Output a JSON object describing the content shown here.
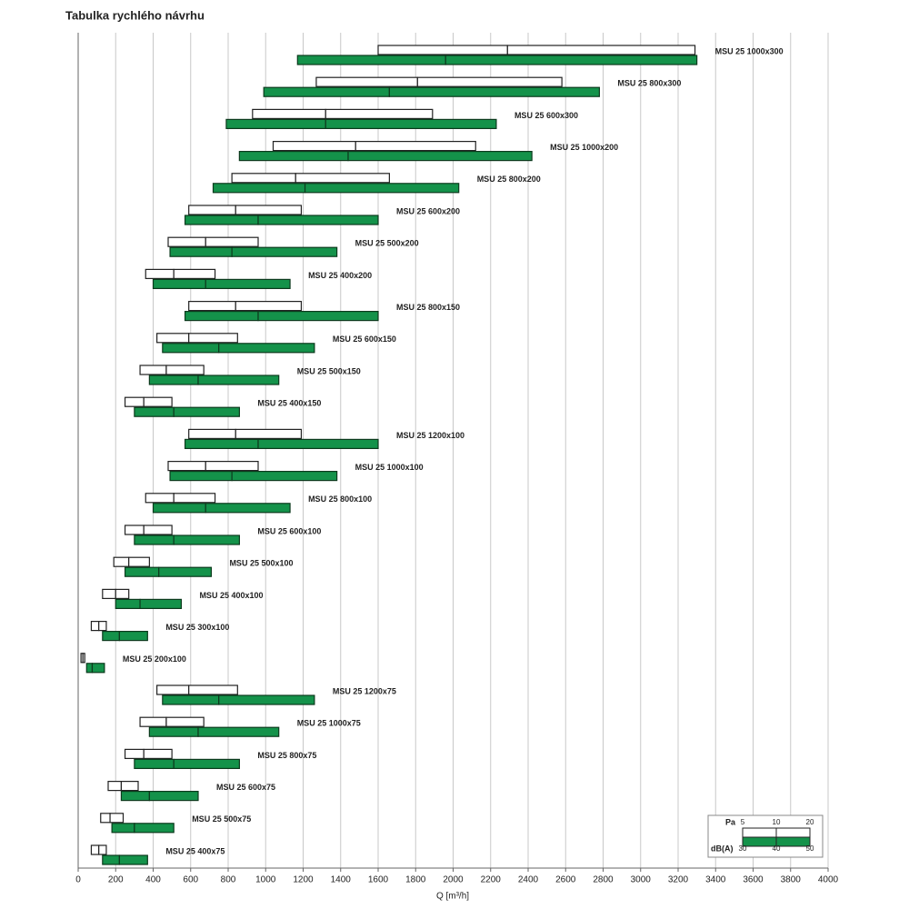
{
  "chart_data": {
    "type": "range",
    "title": "Tabulka rychlého návrhu",
    "x_label": "Q [m³/h]",
    "xlim": [
      0,
      4000
    ],
    "xticks": [
      0,
      200,
      400,
      600,
      800,
      1000,
      1200,
      1400,
      1600,
      1800,
      2000,
      2200,
      2400,
      2600,
      2800,
      3000,
      3200,
      3400,
      3600,
      3800,
      4000
    ],
    "grid": true,
    "legend": "bottom-right",
    "categories": [
      "MSU 25 1000x300",
      "MSU 25 800x300",
      "MSU 25 600x300",
      "MSU 25 1000x200",
      "MSU 25 800x200",
      "MSU 25 600x200",
      "MSU 25 500x200",
      "MSU 25 400x200",
      "MSU 25 800x150",
      "MSU 25 600x150",
      "MSU 25 500x150",
      "MSU 25 400x150",
      "MSU 25 1200x100",
      "MSU 25 1000x100",
      "MSU 25 800x100",
      "MSU 25 600x100",
      "MSU 25 500x100",
      "MSU 25 400x100",
      "MSU 25 300x100",
      "MSU 25 200x100",
      "MSU 25 1200x75",
      "MSU 25 1000x75",
      "MSU 25 800x75",
      "MSU 25 600x75",
      "MSU 25 500x75",
      "MSU 25 400x75"
    ],
    "series": [
      {
        "name": "Pa",
        "color": "#ffffff",
        "ticks": [
          5,
          10,
          20
        ],
        "values": [
          [
            1600,
            2290,
            3290
          ],
          [
            1270,
            1810,
            2580
          ],
          [
            930,
            1320,
            1890
          ],
          [
            1040,
            1480,
            2120
          ],
          [
            820,
            1160,
            1660
          ],
          [
            590,
            840,
            1190
          ],
          [
            480,
            680,
            960
          ],
          [
            360,
            510,
            730
          ],
          [
            590,
            840,
            1190
          ],
          [
            420,
            590,
            850
          ],
          [
            330,
            470,
            670
          ],
          [
            250,
            350,
            500
          ],
          [
            590,
            840,
            1190
          ],
          [
            480,
            680,
            960
          ],
          [
            360,
            510,
            730
          ],
          [
            250,
            350,
            500
          ],
          [
            190,
            270,
            380
          ],
          [
            130,
            200,
            270
          ],
          [
            70,
            110,
            150
          ],
          [
            15,
            25,
            35
          ],
          [
            420,
            590,
            850
          ],
          [
            330,
            470,
            670
          ],
          [
            250,
            350,
            500
          ],
          [
            160,
            230,
            320
          ],
          [
            120,
            170,
            240
          ],
          [
            70,
            110,
            150
          ]
        ]
      },
      {
        "name": "dB(A)",
        "color": "#14924a",
        "ticks": [
          30,
          40,
          50
        ],
        "values": [
          [
            1170,
            1960,
            3300
          ],
          [
            990,
            1660,
            2780
          ],
          [
            790,
            1320,
            2230
          ],
          [
            860,
            1440,
            2420
          ],
          [
            720,
            1210,
            2030
          ],
          [
            570,
            960,
            1600
          ],
          [
            490,
            820,
            1380
          ],
          [
            400,
            680,
            1130
          ],
          [
            570,
            960,
            1600
          ],
          [
            450,
            750,
            1260
          ],
          [
            380,
            640,
            1070
          ],
          [
            300,
            510,
            860
          ],
          [
            570,
            960,
            1600
          ],
          [
            490,
            820,
            1380
          ],
          [
            400,
            680,
            1130
          ],
          [
            300,
            510,
            860
          ],
          [
            250,
            430,
            710
          ],
          [
            200,
            330,
            550
          ],
          [
            130,
            220,
            370
          ],
          [
            45,
            75,
            140
          ],
          [
            450,
            750,
            1260
          ],
          [
            380,
            640,
            1070
          ],
          [
            300,
            510,
            860
          ],
          [
            230,
            380,
            640
          ],
          [
            180,
            300,
            510
          ],
          [
            130,
            220,
            370
          ]
        ]
      }
    ]
  }
}
